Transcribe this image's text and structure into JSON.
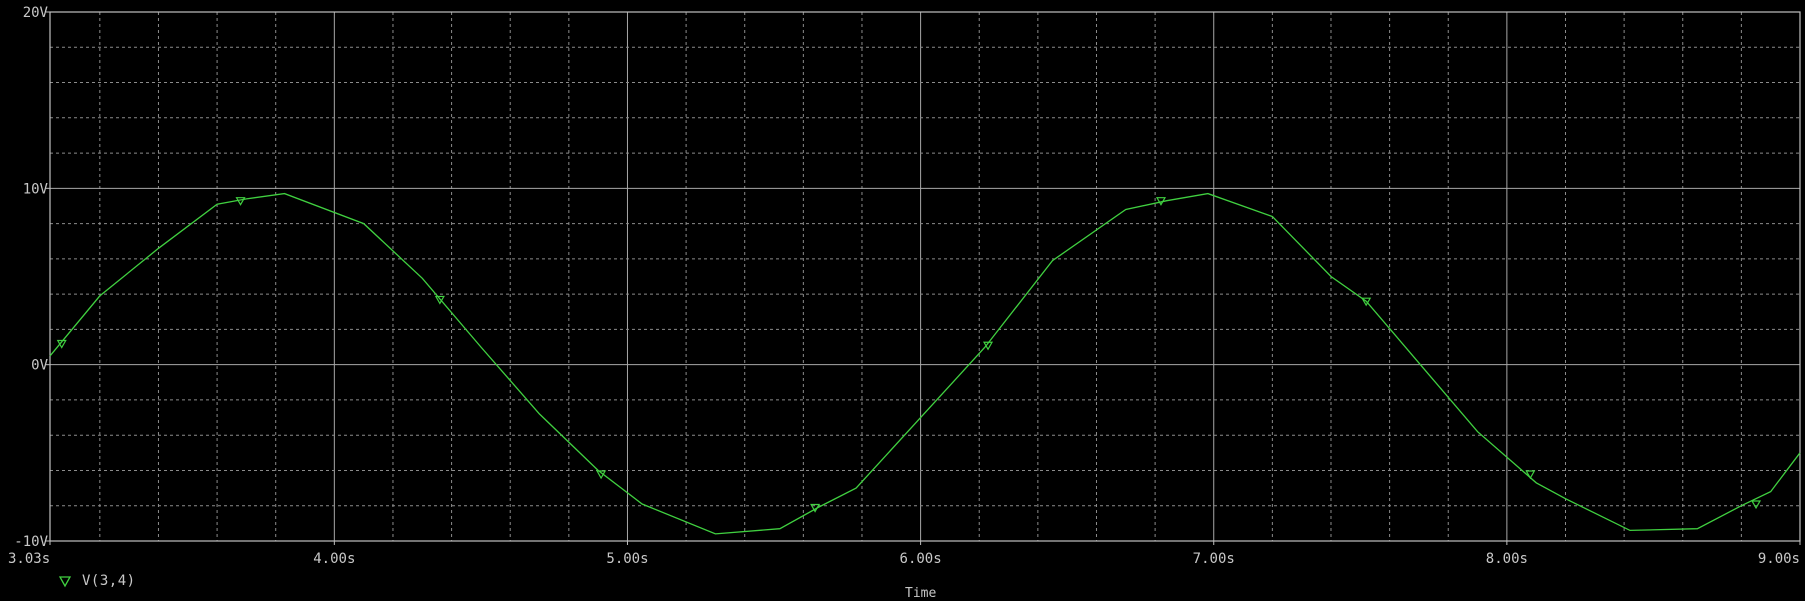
{
  "chart_data": {
    "type": "line",
    "xlabel": "Time",
    "ylabel": "",
    "xlim": [
      3.03,
      9.0
    ],
    "ylim": [
      -10,
      20
    ],
    "x_ticks": [
      3.03,
      4.0,
      5.0,
      6.0,
      7.0,
      8.0,
      9.0
    ],
    "x_tick_labels": [
      "3.03s",
      "4.00s",
      "5.00s",
      "6.00s",
      "7.00s",
      "8.00s",
      "9.00s"
    ],
    "y_ticks": [
      -10,
      0,
      10,
      20
    ],
    "y_tick_labels": [
      "-10V",
      "0V",
      "10V",
      "20V"
    ],
    "grid": true,
    "series": [
      {
        "name": "V(3,4)",
        "color": "#40d040",
        "x": [
          3.03,
          3.2,
          3.4,
          3.6,
          3.7,
          3.83,
          4.1,
          4.3,
          4.5,
          4.7,
          4.9,
          5.05,
          5.3,
          5.52,
          5.65,
          5.78,
          6.0,
          6.22,
          6.45,
          6.7,
          6.84,
          6.98,
          7.2,
          7.4,
          7.52,
          7.7,
          7.9,
          8.1,
          8.2,
          8.42,
          8.65,
          8.8,
          8.9,
          9.0
        ],
        "y": [
          0.5,
          3.9,
          6.6,
          9.1,
          9.4,
          9.7,
          8.0,
          4.9,
          1.0,
          -2.8,
          -6.0,
          -7.9,
          -9.6,
          -9.3,
          -8.1,
          -7.0,
          -3.0,
          1.0,
          5.9,
          8.8,
          9.3,
          9.7,
          8.4,
          5.0,
          3.6,
          0.1,
          -3.8,
          -6.7,
          -7.6,
          -9.4,
          -9.3,
          -8.0,
          -7.2,
          -5.0
        ],
        "marker_x": [
          3.07,
          3.68,
          4.36,
          4.91,
          5.64,
          6.23,
          6.82,
          7.52,
          8.08,
          8.85
        ],
        "marker_y": [
          1.2,
          9.3,
          3.7,
          -6.2,
          -8.1,
          1.1,
          9.3,
          3.6,
          -6.2,
          -7.9
        ]
      }
    ]
  }
}
